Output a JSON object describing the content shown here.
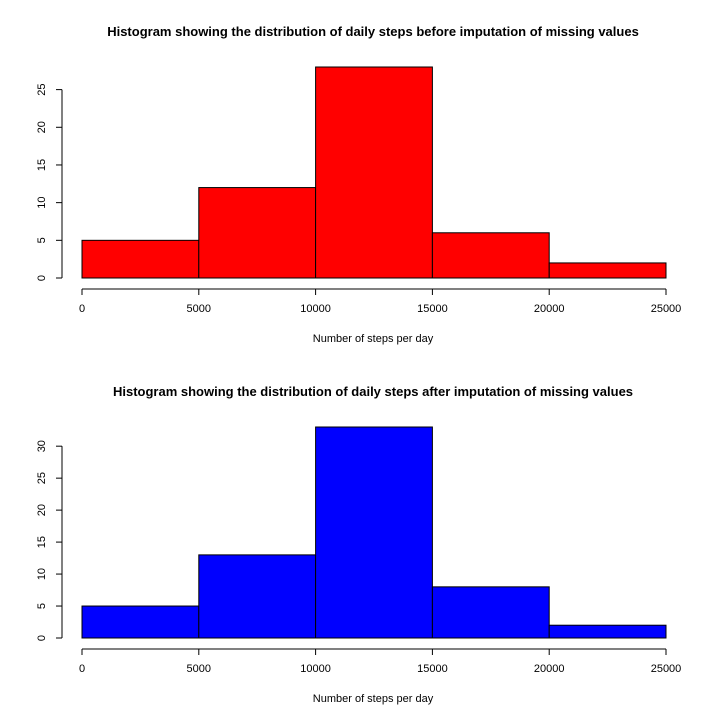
{
  "chart_data": [
    {
      "type": "bar",
      "title": "Histogram showing the distribution of daily steps before imputation of missing values",
      "xlabel": "Number of steps per day",
      "ylabel": "",
      "bins": [
        [
          0,
          5000
        ],
        [
          5000,
          10000
        ],
        [
          10000,
          15000
        ],
        [
          15000,
          20000
        ],
        [
          20000,
          25000
        ]
      ],
      "values": [
        5,
        12,
        28,
        6,
        2
      ],
      "xlim": [
        0,
        25000
      ],
      "ylim": [
        0,
        28
      ],
      "xticks": [
        "0",
        "5000",
        "10000",
        "15000",
        "20000",
        "25000"
      ],
      "yticks": [
        "0",
        "5",
        "10",
        "15",
        "20",
        "25"
      ],
      "color": "#ff0000",
      "grid": false
    },
    {
      "type": "bar",
      "title": "Histogram showing the distribution of daily steps after imputation of missing values",
      "xlabel": "Number of steps per day",
      "ylabel": "",
      "bins": [
        [
          0,
          5000
        ],
        [
          5000,
          10000
        ],
        [
          10000,
          15000
        ],
        [
          15000,
          20000
        ],
        [
          20000,
          25000
        ]
      ],
      "values": [
        5,
        13,
        33,
        8,
        2
      ],
      "xlim": [
        0,
        25000
      ],
      "ylim": [
        0,
        33
      ],
      "xticks": [
        "0",
        "5000",
        "10000",
        "15000",
        "20000",
        "25000"
      ],
      "yticks": [
        "0",
        "5",
        "10",
        "15",
        "20",
        "25",
        "30"
      ],
      "color": "#0000ff",
      "grid": false
    }
  ]
}
